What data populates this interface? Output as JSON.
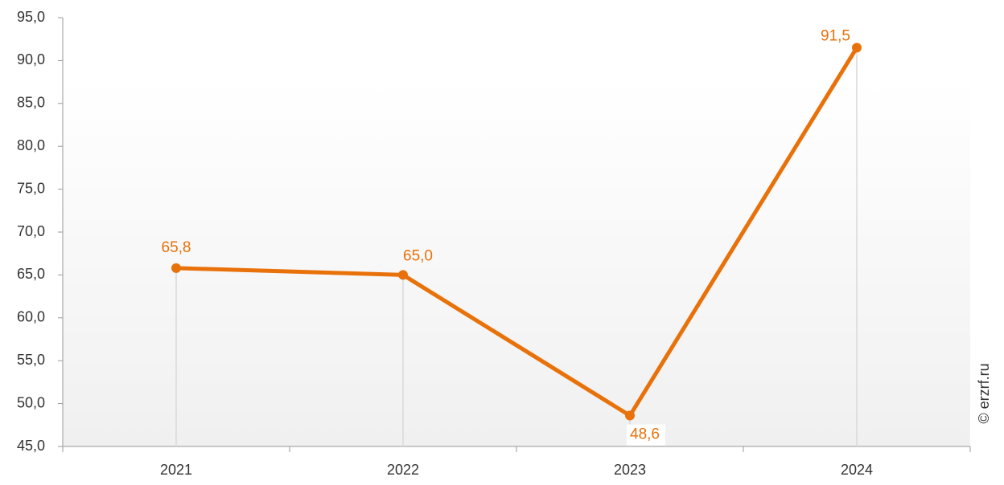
{
  "chart_data": {
    "type": "line",
    "categories": [
      "2021",
      "2022",
      "2023",
      "2024"
    ],
    "series": [
      {
        "name": null,
        "color": "#e8710a",
        "values": [
          65.8,
          65.0,
          48.6,
          91.5
        ],
        "value_labels": [
          "65,8",
          "65,0",
          "48,6",
          "91,5"
        ]
      }
    ],
    "ylim": [
      45,
      95
    ],
    "yticks": [
      {
        "value": 45,
        "label": "45,0"
      },
      {
        "value": 50,
        "label": "50,0"
      },
      {
        "value": 55,
        "label": "55,0"
      },
      {
        "value": 60,
        "label": "60,0"
      },
      {
        "value": 65,
        "label": "65,0"
      },
      {
        "value": 70,
        "label": "70,0"
      },
      {
        "value": 75,
        "label": "75,0"
      },
      {
        "value": 80,
        "label": "80,0"
      },
      {
        "value": 85,
        "label": "85,0"
      },
      {
        "value": 90,
        "label": "90,0"
      },
      {
        "value": 95,
        "label": "95,0"
      }
    ],
    "watermark": "© erzrf.ru"
  }
}
